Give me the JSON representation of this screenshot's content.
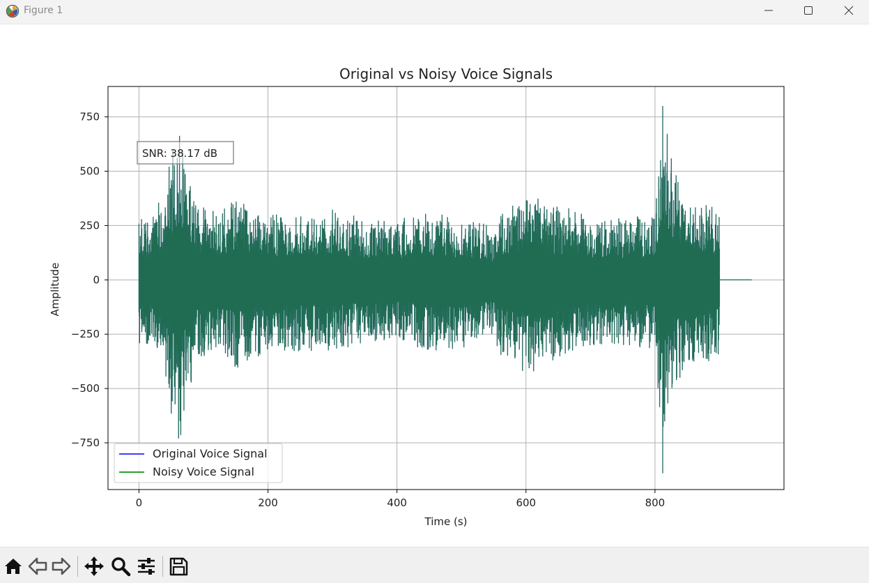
{
  "window": {
    "title": "Figure 1",
    "icons": [
      "matplotlib-logo-icon",
      "minimize-icon",
      "maximize-icon",
      "close-icon"
    ]
  },
  "toolbar": {
    "icons": [
      "home-icon",
      "back-arrow-icon",
      "forward-arrow-icon",
      "pan-move-icon",
      "zoom-magnifier-icon",
      "configure-subplots-icon",
      "save-floppy-icon"
    ]
  },
  "chart_data": {
    "type": "line",
    "title": "Original vs Noisy Voice Signals",
    "xlabel": "Time (s)",
    "ylabel": "Amplitude",
    "xlim": [
      -48,
      1000
    ],
    "ylim": [
      -965,
      890
    ],
    "xticks": [
      0,
      200,
      400,
      600,
      800
    ],
    "xtick_labels": [
      "0",
      "200",
      "400",
      "600",
      "800"
    ],
    "yticks": [
      750,
      500,
      250,
      0,
      -250,
      -500,
      -750
    ],
    "ytick_labels": [
      "750",
      "500",
      "250",
      "0",
      "−250",
      "−500",
      "−750"
    ],
    "grid": true,
    "legend_position": "lower-left",
    "annotation": "SNR: 38.17 dB",
    "signal_duration_s": 900,
    "padded_end_s": 950,
    "envelope": {
      "time": [
        0,
        20,
        40,
        55,
        65,
        75,
        90,
        110,
        130,
        150,
        175,
        200,
        250,
        300,
        350,
        400,
        450,
        500,
        550,
        555,
        580,
        600,
        620,
        650,
        680,
        700,
        750,
        800,
        812,
        830,
        860,
        880,
        900
      ],
      "amplitude": [
        300,
        300,
        480,
        700,
        780,
        560,
        380,
        330,
        330,
        420,
        380,
        320,
        330,
        330,
        290,
        280,
        330,
        320,
        260,
        350,
        360,
        450,
        400,
        360,
        320,
        310,
        300,
        320,
        800,
        500,
        380,
        380,
        350
      ]
    },
    "series": [
      {
        "name": "Original Voice Signal",
        "color": "#4040f0"
      },
      {
        "name": "Noisy Voice Signal",
        "color": "#2ca02c"
      }
    ],
    "overlap_color": "#1a6b4a"
  }
}
